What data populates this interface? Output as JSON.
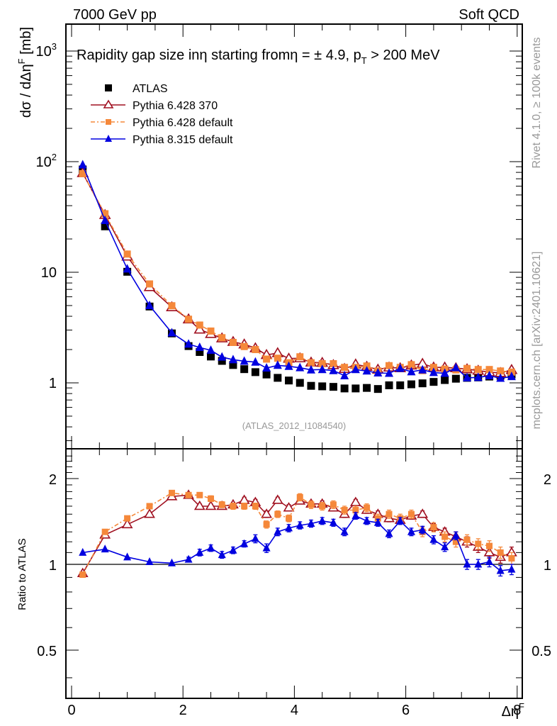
{
  "header": {
    "left": "7000 GeV pp",
    "right": "Soft QCD"
  },
  "side_labels": {
    "rivet": "Rivet 4.1.0, ≥ 100k events",
    "mcplots": "mcplots.cern.ch [arXiv:2401.10621]"
  },
  "chart_data": [
    {
      "type": "scatter",
      "panel": "main",
      "title": "Rapidity gap size inη starting fromη = ± 4.9, p_T > 200 MeV",
      "title_parts": {
        "main": "Rapidity gap size inη starting fromη = ± 4.9, p",
        "sub": "T",
        "tail": " > 200 MeV"
      },
      "ylabel": "dσ / dΔη^F [mb]",
      "ylabel_parts": {
        "main": "dσ / dΔη",
        "sup": "F",
        "tail": " [mb]"
      },
      "yscale": "log",
      "ylim": [
        0.25,
        1700
      ],
      "xlim": [
        -0.1,
        8.2
      ],
      "yticks": [
        {
          "value": 1000,
          "label": "10",
          "sup": "3"
        },
        {
          "value": 100,
          "label": "10",
          "sup": "2"
        },
        {
          "value": 10,
          "label": "10",
          "sup": ""
        },
        {
          "value": 1,
          "label": "1",
          "sup": ""
        }
      ],
      "legend_position": "top-left",
      "annotation": "(ATLAS_2012_I1084540)",
      "x": [
        0.2,
        0.6,
        1.0,
        1.4,
        1.8,
        2.1,
        2.3,
        2.5,
        2.7,
        2.9,
        3.1,
        3.3,
        3.5,
        3.7,
        3.9,
        4.1,
        4.3,
        4.5,
        4.7,
        4.9,
        5.1,
        5.3,
        5.5,
        5.7,
        5.9,
        6.1,
        6.3,
        6.5,
        6.7,
        6.9,
        7.1,
        7.3,
        7.5,
        7.7,
        7.9
      ],
      "series": [
        {
          "name": "ATLAS",
          "color": "#000000",
          "marker": "square",
          "values": [
            85,
            26,
            10.1,
            4.9,
            2.8,
            2.15,
            1.9,
            1.73,
            1.58,
            1.45,
            1.33,
            1.25,
            1.19,
            1.11,
            1.05,
            1.0,
            0.94,
            0.93,
            0.92,
            0.89,
            0.89,
            0.9,
            0.88,
            0.95,
            0.95,
            0.97,
            0.99,
            1.02,
            1.06,
            1.09,
            1.11,
            1.12,
            1.14,
            1.16,
            1.19
          ]
        },
        {
          "name": "Pythia 6.428 370",
          "color": "#a01020",
          "marker": "open-triangle",
          "line": "solid",
          "values": [
            79,
            33,
            13.9,
            7.35,
            4.84,
            3.76,
            3.04,
            2.77,
            2.53,
            2.35,
            2.23,
            2.06,
            1.79,
            1.86,
            1.66,
            1.67,
            1.53,
            1.52,
            1.45,
            1.34,
            1.47,
            1.4,
            1.32,
            1.38,
            1.36,
            1.44,
            1.49,
            1.38,
            1.38,
            1.36,
            1.33,
            1.29,
            1.25,
            1.23,
            1.31
          ]
        },
        {
          "name": "Pythia 6.428 default",
          "color": "#f5883a",
          "marker": "filled-square",
          "line": "dashdot",
          "values": [
            78,
            33.8,
            14.6,
            7.84,
            4.98,
            3.76,
            3.33,
            2.94,
            2.56,
            2.32,
            2.13,
            2.0,
            1.64,
            1.67,
            1.52,
            1.72,
            1.52,
            1.49,
            1.49,
            1.38,
            1.38,
            1.42,
            1.28,
            1.43,
            1.38,
            1.46,
            1.29,
            1.38,
            1.33,
            1.31,
            1.35,
            1.32,
            1.32,
            1.28,
            1.25
          ]
        },
        {
          "name": "Pythia 8.315 default",
          "color": "#0000e0",
          "marker": "filled-triangle",
          "line": "solid",
          "values": [
            93.5,
            29.4,
            10.7,
            5.0,
            2.83,
            2.24,
            2.09,
            1.97,
            1.71,
            1.62,
            1.57,
            1.54,
            1.36,
            1.44,
            1.41,
            1.37,
            1.31,
            1.32,
            1.29,
            1.16,
            1.32,
            1.28,
            1.23,
            1.22,
            1.35,
            1.26,
            1.31,
            1.24,
            1.22,
            1.37,
            1.11,
            1.12,
            1.16,
            1.1,
            1.14
          ]
        }
      ]
    },
    {
      "type": "scatter",
      "panel": "ratio",
      "ylabel": "Ratio to ATLAS",
      "xlabel": "Δη^F",
      "xlabel_parts": {
        "main": "Δη",
        "sup": "F"
      },
      "yscale": "log",
      "ylim": [
        0.4,
        2.5
      ],
      "xlim": [
        -0.1,
        8.2
      ],
      "yticks": [
        {
          "value": 2,
          "label": "2"
        },
        {
          "value": 1,
          "label": "1"
        },
        {
          "value": 0.5,
          "label": "0.5"
        }
      ],
      "xticks": [
        {
          "value": 0,
          "label": "0"
        },
        {
          "value": 2,
          "label": "2"
        },
        {
          "value": 4,
          "label": "4"
        },
        {
          "value": 6,
          "label": "6"
        },
        {
          "value": 8,
          "label": "8"
        }
      ],
      "reference_line": 1,
      "x": [
        0.2,
        0.6,
        1.0,
        1.4,
        1.8,
        2.1,
        2.3,
        2.5,
        2.7,
        2.9,
        3.1,
        3.3,
        3.5,
        3.7,
        3.9,
        4.1,
        4.3,
        4.5,
        4.7,
        4.9,
        5.1,
        5.3,
        5.5,
        5.7,
        5.9,
        6.1,
        6.3,
        6.5,
        6.7,
        6.9,
        7.1,
        7.3,
        7.5,
        7.7,
        7.9
      ],
      "series": [
        {
          "name": "Pythia 6.428 370",
          "color": "#a01020",
          "marker": "open-triangle",
          "line": "solid",
          "values": [
            0.93,
            1.27,
            1.38,
            1.5,
            1.73,
            1.75,
            1.6,
            1.6,
            1.6,
            1.62,
            1.68,
            1.65,
            1.5,
            1.68,
            1.58,
            1.67,
            1.63,
            1.63,
            1.58,
            1.5,
            1.65,
            1.55,
            1.5,
            1.45,
            1.43,
            1.48,
            1.5,
            1.35,
            1.3,
            1.25,
            1.2,
            1.15,
            1.1,
            1.06,
            1.1
          ],
          "errors": [
            0.01,
            0.01,
            0.01,
            0.01,
            0.02,
            0.02,
            0.03,
            0.03,
            0.03,
            0.03,
            0.04,
            0.04,
            0.04,
            0.04,
            0.04,
            0.04,
            0.04,
            0.04,
            0.04,
            0.04,
            0.04,
            0.04,
            0.04,
            0.04,
            0.04,
            0.04,
            0.04,
            0.04,
            0.04,
            0.05,
            0.05,
            0.05,
            0.05,
            0.05,
            0.05
          ]
        },
        {
          "name": "Pythia 6.428 default",
          "color": "#f5883a",
          "marker": "filled-square",
          "line": "dashdot",
          "values": [
            0.92,
            1.3,
            1.45,
            1.6,
            1.78,
            1.75,
            1.75,
            1.7,
            1.62,
            1.6,
            1.6,
            1.6,
            1.38,
            1.5,
            1.45,
            1.72,
            1.62,
            1.6,
            1.62,
            1.55,
            1.55,
            1.58,
            1.45,
            1.5,
            1.45,
            1.5,
            1.3,
            1.35,
            1.25,
            1.2,
            1.22,
            1.18,
            1.16,
            1.1,
            1.05
          ],
          "errors": [
            0.01,
            0.01,
            0.01,
            0.01,
            0.02,
            0.03,
            0.03,
            0.04,
            0.04,
            0.04,
            0.04,
            0.04,
            0.04,
            0.04,
            0.04,
            0.05,
            0.05,
            0.05,
            0.05,
            0.05,
            0.05,
            0.05,
            0.05,
            0.05,
            0.05,
            0.05,
            0.05,
            0.05,
            0.05,
            0.05,
            0.05,
            0.05,
            0.05,
            0.05,
            0.05
          ]
        },
        {
          "name": "Pythia 8.315 default",
          "color": "#0000e0",
          "marker": "filled-triangle",
          "line": "solid",
          "values": [
            1.1,
            1.13,
            1.06,
            1.02,
            1.01,
            1.04,
            1.1,
            1.14,
            1.08,
            1.12,
            1.18,
            1.23,
            1.14,
            1.3,
            1.34,
            1.37,
            1.39,
            1.42,
            1.4,
            1.3,
            1.48,
            1.42,
            1.4,
            1.28,
            1.42,
            1.3,
            1.32,
            1.22,
            1.15,
            1.26,
            1.0,
            1.0,
            1.02,
            0.95,
            0.96
          ],
          "errors": [
            0.01,
            0.01,
            0.01,
            0.01,
            0.01,
            0.02,
            0.03,
            0.03,
            0.03,
            0.03,
            0.03,
            0.04,
            0.04,
            0.04,
            0.04,
            0.04,
            0.04,
            0.04,
            0.04,
            0.04,
            0.04,
            0.04,
            0.04,
            0.04,
            0.04,
            0.04,
            0.04,
            0.04,
            0.04,
            0.04,
            0.04,
            0.04,
            0.04,
            0.04,
            0.04
          ]
        }
      ]
    }
  ]
}
